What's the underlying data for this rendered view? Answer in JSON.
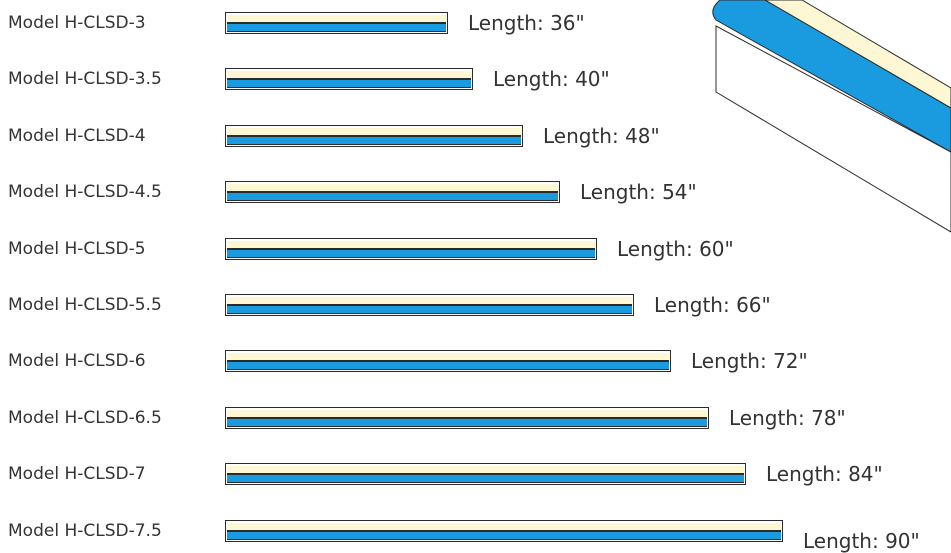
{
  "colors": {
    "cream": "#fdf7d3",
    "blue": "#1a9be0",
    "outline": "#2b2b2b",
    "text": "#333333"
  },
  "models": [
    {
      "model": "Model H-CLSD-3",
      "length_label": "Length: 36\"",
      "length_in": 36
    },
    {
      "model": "Model H-CLSD-3.5",
      "length_label": "Length: 40\"",
      "length_in": 40
    },
    {
      "model": "Model H-CLSD-4",
      "length_label": "Length: 48\"",
      "length_in": 48
    },
    {
      "model": "Model H-CLSD-4.5",
      "length_label": "Length: 54\"",
      "length_in": 54
    },
    {
      "model": "Model H-CLSD-5",
      "length_label": "Length: 60\"",
      "length_in": 60
    },
    {
      "model": "Model H-CLSD-5.5",
      "length_label": "Length: 66\"",
      "length_in": 66
    },
    {
      "model": "Model H-CLSD-6",
      "length_label": "Length: 72\"",
      "length_in": 72
    },
    {
      "model": "Model H-CLSD-6.5",
      "length_label": "Length: 78\"",
      "length_in": 78
    },
    {
      "model": "Model H-CLSD-7",
      "length_label": "Length: 84\"",
      "length_in": 84
    },
    {
      "model": "Model H-CLSD-7.5",
      "length_label": "Length: 90\"",
      "length_in": 90
    }
  ]
}
